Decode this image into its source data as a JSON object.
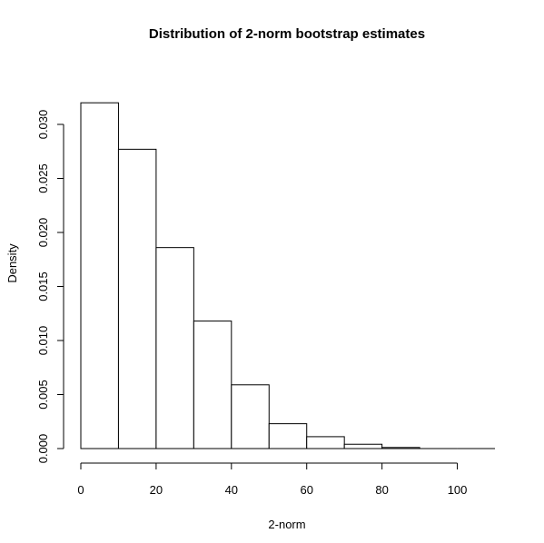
{
  "chart_data": {
    "type": "bar",
    "title": "Distribution of 2-norm bootstrap estimates",
    "xlabel": "2-norm",
    "ylabel": "Density",
    "bins": [
      {
        "from": 0,
        "to": 10,
        "density": 0.032
      },
      {
        "from": 10,
        "to": 20,
        "density": 0.0277
      },
      {
        "from": 20,
        "to": 30,
        "density": 0.0186
      },
      {
        "from": 30,
        "to": 40,
        "density": 0.0118
      },
      {
        "from": 40,
        "to": 50,
        "density": 0.0059
      },
      {
        "from": 50,
        "to": 60,
        "density": 0.0023
      },
      {
        "from": 60,
        "to": 70,
        "density": 0.0011
      },
      {
        "from": 70,
        "to": 80,
        "density": 0.0004
      },
      {
        "from": 80,
        "to": 90,
        "density": 0.0001
      },
      {
        "from": 90,
        "to": 100,
        "density": 0.0
      },
      {
        "from": 100,
        "to": 110,
        "density": 0.0
      }
    ],
    "x_ticks": [
      "0",
      "20",
      "40",
      "60",
      "80",
      "100"
    ],
    "x_tick_values": [
      0,
      20,
      40,
      60,
      80,
      100
    ],
    "y_ticks": [
      "0.000",
      "0.005",
      "0.010",
      "0.015",
      "0.020",
      "0.025",
      "0.030"
    ],
    "y_tick_values": [
      0.0,
      0.005,
      0.01,
      0.015,
      0.02,
      0.025,
      0.03
    ],
    "xlim": [
      0,
      110
    ],
    "ylim": [
      0,
      0.032
    ],
    "grid": false,
    "bar_fill": "#ffffff",
    "bar_stroke": "#000000"
  }
}
